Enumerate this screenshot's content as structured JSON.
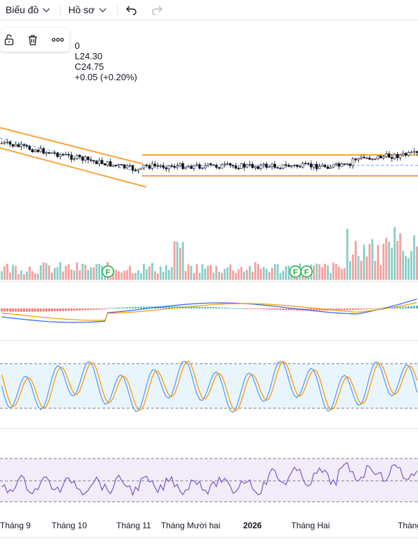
{
  "toolbar": {
    "chart_menu": "Biểu đồ",
    "profile_menu": "Hồ sơ"
  },
  "ohlc": {
    "open_fragment": "0",
    "low": "L24.30",
    "close": "C24.75",
    "change": "+0.05 (+0.20%)"
  },
  "icons": {
    "unlock": "unlock-icon",
    "trash": "trash-icon",
    "more": "more-icon",
    "undo": "undo-icon",
    "redo": "redo-icon"
  },
  "colors": {
    "up": "#26a69a",
    "down": "#ef5350",
    "channel": "#f7a53a",
    "macd_line": "#2962ff",
    "signal_line": "#ff9800",
    "stoch_k": "#5b9cf6",
    "stoch_d": "#ff9800",
    "rsi": "#7e57c2",
    "marker": "#22ab42"
  },
  "event_markers": [
    "F",
    "F",
    "F"
  ],
  "x_axis": {
    "labels": [
      "Tháng 9",
      "Tháng 10",
      "Tháng 11",
      "Tháng Mười hai",
      "2026",
      "Tháng Hai",
      "Tháng"
    ]
  }
}
